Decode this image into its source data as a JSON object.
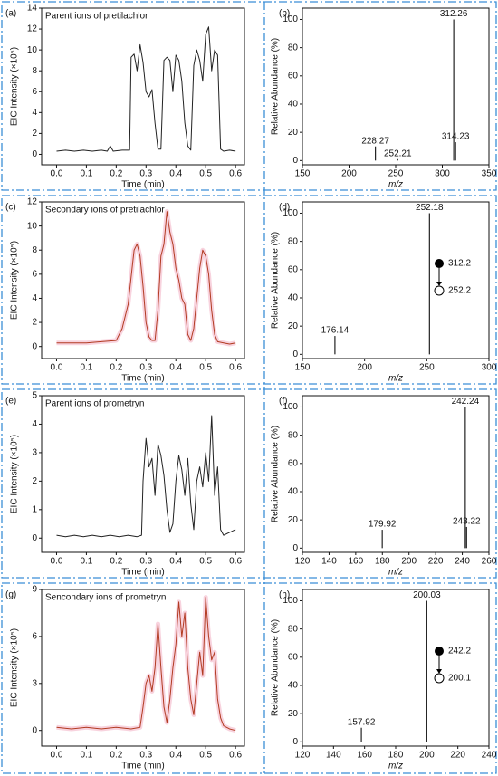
{
  "chart_data": [
    {
      "type": "line",
      "label": "(a)",
      "annotation": "Parent ions of pretilachlor",
      "color": "#222222",
      "x": [
        0,
        0.03,
        0.06,
        0.09,
        0.12,
        0.15,
        0.17,
        0.18,
        0.19,
        0.22,
        0.245,
        0.25,
        0.26,
        0.27,
        0.28,
        0.29,
        0.3,
        0.31,
        0.32,
        0.33,
        0.34,
        0.35,
        0.36,
        0.37,
        0.38,
        0.39,
        0.4,
        0.41,
        0.42,
        0.43,
        0.44,
        0.45,
        0.46,
        0.47,
        0.48,
        0.49,
        0.5,
        0.51,
        0.52,
        0.53,
        0.54,
        0.55,
        0.56,
        0.58,
        0.6
      ],
      "values": [
        0.3,
        0.4,
        0.3,
        0.4,
        0.3,
        0.4,
        0.3,
        0.8,
        0.3,
        0.4,
        0.4,
        9.3,
        9.6,
        8.0,
        10.5,
        8.8,
        6.0,
        5.5,
        6.2,
        3.0,
        0.5,
        0.5,
        9.0,
        9.3,
        9.0,
        6.0,
        9.5,
        9.0,
        7.0,
        3.0,
        0.8,
        0.4,
        8.5,
        10.0,
        9.0,
        7.0,
        11.5,
        12.2,
        8.0,
        10.0,
        9.5,
        0.5,
        0.3,
        0.4,
        0.3
      ],
      "xlim": [
        -0.05,
        0.63
      ],
      "xticks": [
        {
          "value": 0,
          "label": "0.0"
        },
        0.1,
        0.2,
        0.3,
        0.4,
        0.5,
        0.6
      ],
      "ylim": [
        -1,
        14
      ],
      "yticks": [
        0,
        2,
        4,
        6,
        8,
        10,
        12,
        14
      ],
      "xlabel": "Time (min)",
      "ylabel": "EIC Intensity (×10⁵)"
    },
    {
      "type": "stem",
      "label": "(b)",
      "color": "#222222",
      "x": [
        228.27,
        252.21,
        312.26,
        314.23
      ],
      "values": [
        10,
        1,
        100,
        13
      ],
      "xlim": [
        150,
        350
      ],
      "xticks": [
        150,
        200,
        250,
        300,
        350
      ],
      "ylim": [
        -3,
        108
      ],
      "yticks": [
        0,
        20,
        40,
        60,
        80,
        100
      ],
      "xlabel": "m/z",
      "ylabel": "Relative Abundance (%)"
    },
    {
      "type": "line",
      "label": "(c)",
      "annotation": "Secondary ions of pretilachlor",
      "color": "#b23b22",
      "band_color": "#f6c8d6",
      "x": [
        0,
        0.05,
        0.1,
        0.15,
        0.2,
        0.22,
        0.24,
        0.26,
        0.27,
        0.28,
        0.29,
        0.3,
        0.31,
        0.32,
        0.33,
        0.34,
        0.35,
        0.36,
        0.37,
        0.38,
        0.39,
        0.4,
        0.41,
        0.42,
        0.43,
        0.44,
        0.45,
        0.46,
        0.47,
        0.48,
        0.49,
        0.5,
        0.51,
        0.52,
        0.53,
        0.54,
        0.56,
        0.58,
        0.6
      ],
      "values": [
        0.3,
        0.3,
        0.3,
        0.4,
        0.5,
        1.5,
        3.5,
        8.0,
        8.5,
        7.5,
        5.0,
        2.0,
        0.8,
        0.5,
        0.5,
        3.0,
        7.5,
        8.5,
        11.2,
        9.5,
        8.5,
        6.5,
        5.5,
        4.0,
        3.5,
        1.0,
        0.5,
        1.5,
        4.0,
        6.5,
        8.0,
        7.5,
        6.0,
        3.0,
        1.0,
        0.4,
        0.3,
        0.2,
        0.3
      ],
      "xlim": [
        -0.05,
        0.63
      ],
      "xticks": [
        {
          "value": 0,
          "label": "0.0"
        },
        0.1,
        0.2,
        0.3,
        0.4,
        0.5,
        0.6
      ],
      "ylim": [
        -1,
        12
      ],
      "yticks": [
        0,
        2,
        4,
        6,
        8,
        10,
        12
      ],
      "xlabel": "Time (min)",
      "ylabel": "EIC Intensity (×10⁵)"
    },
    {
      "type": "stem",
      "label": "(d)",
      "color": "#222222",
      "x": [
        176.14,
        252.18
      ],
      "values": [
        13,
        100
      ],
      "xlim": [
        150,
        300
      ],
      "xticks": [
        150,
        200,
        250,
        300
      ],
      "ylim": [
        -3,
        108
      ],
      "yticks": [
        0,
        20,
        40,
        60,
        80,
        100
      ],
      "xlabel": "m/z",
      "ylabel": "Relative Abundance (%)",
      "transition": {
        "from": "312.2",
        "to": "252.2"
      }
    },
    {
      "type": "line",
      "label": "(e)",
      "annotation": "Parent ions of prometryn",
      "color": "#222222",
      "x": [
        0,
        0.03,
        0.06,
        0.09,
        0.12,
        0.15,
        0.18,
        0.21,
        0.24,
        0.27,
        0.285,
        0.29,
        0.3,
        0.31,
        0.32,
        0.33,
        0.34,
        0.35,
        0.36,
        0.37,
        0.38,
        0.39,
        0.4,
        0.41,
        0.42,
        0.43,
        0.44,
        0.45,
        0.46,
        0.47,
        0.48,
        0.49,
        0.5,
        0.51,
        0.52,
        0.53,
        0.54,
        0.55,
        0.56,
        0.58,
        0.6
      ],
      "values": [
        0.1,
        0.05,
        0.1,
        0.05,
        0.1,
        0.05,
        0.1,
        0.05,
        0.1,
        0.05,
        0.1,
        2.0,
        3.5,
        2.5,
        2.8,
        1.5,
        3.3,
        2.9,
        2.2,
        1.0,
        0.2,
        0.5,
        2.0,
        2.9,
        2.4,
        1.5,
        2.8,
        1.2,
        0.3,
        2.0,
        2.5,
        1.8,
        3.0,
        2.0,
        4.3,
        1.5,
        2.5,
        0.3,
        0.1,
        0.2,
        0.3
      ],
      "xlim": [
        -0.05,
        0.63
      ],
      "xticks": [
        {
          "value": 0,
          "label": "0.0"
        },
        0.1,
        0.2,
        0.3,
        0.4,
        0.5,
        0.6
      ],
      "ylim": [
        -0.5,
        5
      ],
      "yticks": [
        0,
        1,
        2,
        3,
        4,
        5
      ],
      "xlabel": "Time (min)",
      "ylabel": "EIC Intensity (×10⁵)"
    },
    {
      "type": "stem",
      "label": "(f)",
      "color": "#222222",
      "x": [
        179.92,
        242.24,
        243.22
      ],
      "values": [
        13,
        100,
        15
      ],
      "xlim": [
        120,
        260
      ],
      "xticks": [
        120,
        140,
        160,
        180,
        200,
        220,
        240,
        260
      ],
      "ylim": [
        -3,
        108
      ],
      "yticks": [
        0,
        20,
        40,
        60,
        80,
        100
      ],
      "xlabel": "m/z",
      "ylabel": "Relative Abundance (%)"
    },
    {
      "type": "line",
      "label": "(g)",
      "annotation": "Sencondary ions of prometryn",
      "color": "#b23b22",
      "band_color": "#f6c8d6",
      "x": [
        0,
        0.05,
        0.1,
        0.15,
        0.2,
        0.25,
        0.28,
        0.29,
        0.3,
        0.31,
        0.32,
        0.33,
        0.34,
        0.35,
        0.36,
        0.37,
        0.38,
        0.39,
        0.4,
        0.41,
        0.42,
        0.43,
        0.44,
        0.45,
        0.46,
        0.47,
        0.48,
        0.49,
        0.5,
        0.51,
        0.52,
        0.53,
        0.54,
        0.55,
        0.56,
        0.58,
        0.6
      ],
      "values": [
        0.2,
        0.1,
        0.2,
        0.1,
        0.2,
        0.1,
        0.2,
        1.5,
        3.0,
        3.5,
        2.5,
        4.0,
        6.8,
        4.0,
        1.5,
        0.5,
        2.0,
        4.0,
        5.5,
        8.2,
        6.0,
        7.5,
        4.0,
        2.0,
        1.0,
        3.0,
        5.0,
        3.5,
        8.5,
        6.0,
        4.5,
        5.0,
        2.0,
        0.8,
        0.3,
        0.1,
        0.0
      ],
      "xlim": [
        -0.05,
        0.63
      ],
      "xticks": [
        {
          "value": 0,
          "label": "0.0"
        },
        0.1,
        0.2,
        0.3,
        0.4,
        0.5,
        0.6
      ],
      "ylim": [
        -1,
        9
      ],
      "yticks": [
        0,
        3,
        6,
        9
      ],
      "xlabel": "Time (min)",
      "ylabel": "EIC Intensity (×10⁵)"
    },
    {
      "type": "stem",
      "label": "(h)",
      "color": "#222222",
      "x": [
        157.92,
        200.03
      ],
      "values": [
        10,
        100
      ],
      "xlim": [
        120,
        240
      ],
      "xticks": [
        120,
        140,
        160,
        180,
        200,
        220,
        240
      ],
      "ylim": [
        -3,
        108
      ],
      "yticks": [
        0,
        20,
        40,
        60,
        80,
        100
      ],
      "xlabel": "m/z",
      "ylabel": "Relative Abundance (%)",
      "transition": {
        "from": "242.2",
        "to": "200.1"
      }
    }
  ]
}
